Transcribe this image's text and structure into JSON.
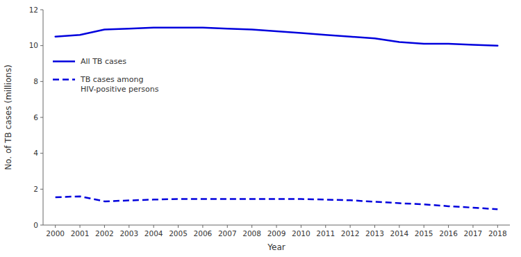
{
  "chart_data": {
    "type": "line",
    "x": [
      2000,
      2001,
      2002,
      2003,
      2004,
      2005,
      2006,
      2007,
      2008,
      2009,
      2010,
      2011,
      2012,
      2013,
      2014,
      2015,
      2016,
      2017,
      2018
    ],
    "series": [
      {
        "name": "All TB cases",
        "color": "#0000dd",
        "line_style": "solid",
        "values": [
          10.5,
          10.6,
          10.9,
          10.95,
          11.0,
          11.0,
          11.0,
          10.95,
          10.9,
          10.8,
          10.7,
          10.6,
          10.5,
          10.4,
          10.2,
          10.1,
          10.1,
          10.05,
          10.0
        ]
      },
      {
        "name": "TB cases among\nHIV-positive persons",
        "color": "#0000dd",
        "line_style": "dashed",
        "values": [
          1.55,
          1.6,
          1.32,
          1.37,
          1.42,
          1.45,
          1.45,
          1.45,
          1.45,
          1.45,
          1.45,
          1.42,
          1.38,
          1.3,
          1.22,
          1.15,
          1.05,
          0.97,
          0.88
        ]
      }
    ],
    "xlabel": "Year",
    "ylabel": "No. of TB cases (millions)",
    "xlim": [
      1999.5,
      2018.5
    ],
    "xticks": [
      2000,
      2001,
      2002,
      2003,
      2004,
      2005,
      2006,
      2007,
      2008,
      2009,
      2010,
      2011,
      2012,
      2013,
      2014,
      2015,
      2016,
      2017,
      2018
    ],
    "ylim": [
      0,
      12
    ],
    "yticks": [
      0,
      2,
      4,
      6,
      8,
      10,
      12
    ],
    "grid": false,
    "legend": "upper-left"
  }
}
